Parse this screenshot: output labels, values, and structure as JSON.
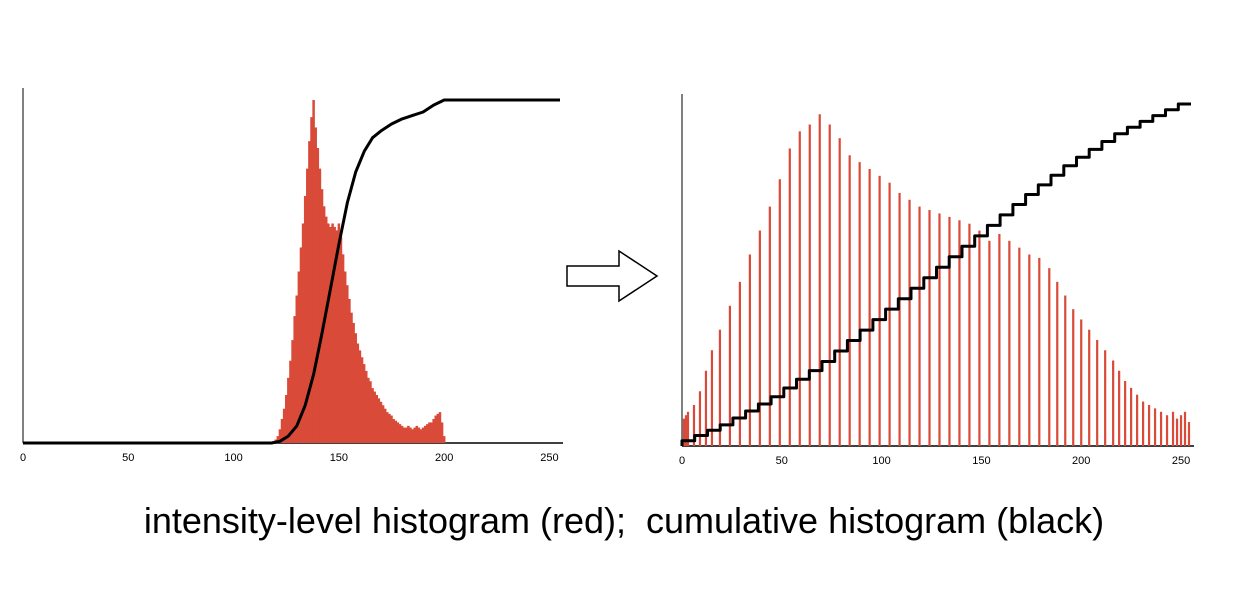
{
  "caption": "intensity-level histogram (red);  cumulative histogram (black)",
  "colors": {
    "histogram": "#d94a38",
    "cumulative": "#000000",
    "axis": "#000000"
  },
  "arrow_icon": "right-arrow-icon",
  "chart_data": [
    {
      "type": "bar",
      "title": "",
      "xlabel": "",
      "ylabel": "",
      "xlim": [
        0,
        255
      ],
      "ylim": [
        0,
        1
      ],
      "xticks": [
        0,
        50,
        100,
        150,
        200,
        250
      ],
      "grid": false,
      "series": [
        {
          "type": "bar",
          "values_sparse": [
            [
              120,
              0.01
            ],
            [
              121,
              0.02
            ],
            [
              122,
              0.04
            ],
            [
              123,
              0.07
            ],
            [
              124,
              0.1
            ],
            [
              125,
              0.14
            ],
            [
              126,
              0.19
            ],
            [
              127,
              0.24
            ],
            [
              128,
              0.3
            ],
            [
              129,
              0.37
            ],
            [
              130,
              0.43
            ],
            [
              131,
              0.5
            ],
            [
              132,
              0.57
            ],
            [
              133,
              0.64
            ],
            [
              134,
              0.72
            ],
            [
              135,
              0.8
            ],
            [
              136,
              0.88
            ],
            [
              137,
              0.95
            ],
            [
              138,
              1.0
            ],
            [
              139,
              0.92
            ],
            [
              140,
              0.86
            ],
            [
              141,
              0.8
            ],
            [
              142,
              0.74
            ],
            [
              143,
              0.69
            ],
            [
              144,
              0.66
            ],
            [
              145,
              0.64
            ],
            [
              146,
              0.63
            ],
            [
              147,
              0.64
            ],
            [
              148,
              0.63
            ],
            [
              149,
              0.62
            ],
            [
              150,
              0.64
            ],
            [
              151,
              0.6
            ],
            [
              152,
              0.55
            ],
            [
              153,
              0.5
            ],
            [
              154,
              0.46
            ],
            [
              155,
              0.42
            ],
            [
              156,
              0.38
            ],
            [
              157,
              0.35
            ],
            [
              158,
              0.32
            ],
            [
              159,
              0.29
            ],
            [
              160,
              0.27
            ],
            [
              161,
              0.25
            ],
            [
              162,
              0.23
            ],
            [
              163,
              0.21
            ],
            [
              164,
              0.19
            ],
            [
              165,
              0.18
            ],
            [
              166,
              0.16
            ],
            [
              167,
              0.15
            ],
            [
              168,
              0.14
            ],
            [
              169,
              0.13
            ],
            [
              170,
              0.12
            ],
            [
              171,
              0.11
            ],
            [
              172,
              0.1
            ],
            [
              173,
              0.09
            ],
            [
              174,
              0.085
            ],
            [
              175,
              0.08
            ],
            [
              176,
              0.07
            ],
            [
              177,
              0.065
            ],
            [
              178,
              0.06
            ],
            [
              179,
              0.055
            ],
            [
              180,
              0.05
            ],
            [
              181,
              0.045
            ],
            [
              182,
              0.045
            ],
            [
              183,
              0.05
            ],
            [
              184,
              0.045
            ],
            [
              185,
              0.04
            ],
            [
              186,
              0.045
            ],
            [
              187,
              0.05
            ],
            [
              188,
              0.045
            ],
            [
              189,
              0.04
            ],
            [
              190,
              0.045
            ],
            [
              191,
              0.05
            ],
            [
              192,
              0.055
            ],
            [
              193,
              0.06
            ],
            [
              194,
              0.06
            ],
            [
              195,
              0.07
            ],
            [
              196,
              0.08
            ],
            [
              197,
              0.085
            ],
            [
              198,
              0.09
            ],
            [
              199,
              0.06
            ],
            [
              200,
              0.02
            ]
          ]
        },
        {
          "type": "line",
          "x": [
            0,
            118,
            122,
            126,
            130,
            134,
            138,
            142,
            146,
            150,
            154,
            158,
            162,
            166,
            170,
            175,
            180,
            185,
            190,
            195,
            200,
            255
          ],
          "values": [
            0,
            0,
            0.005,
            0.02,
            0.05,
            0.11,
            0.2,
            0.32,
            0.45,
            0.58,
            0.7,
            0.79,
            0.85,
            0.89,
            0.91,
            0.93,
            0.945,
            0.955,
            0.965,
            0.985,
            1.0,
            1.0
          ]
        }
      ]
    },
    {
      "type": "bar",
      "title": "",
      "xlabel": "",
      "ylabel": "",
      "xlim": [
        0,
        255
      ],
      "ylim": [
        0,
        1
      ],
      "xticks": [
        0,
        50,
        100,
        150,
        200,
        250
      ],
      "grid": false,
      "series": [
        {
          "type": "bar",
          "values_sparse": [
            [
              1,
              0.08
            ],
            [
              2,
              0.09
            ],
            [
              3,
              0.1
            ],
            [
              6,
              0.12
            ],
            [
              9,
              0.16
            ],
            [
              12,
              0.22
            ],
            [
              15,
              0.28
            ],
            [
              19,
              0.34
            ],
            [
              24,
              0.41
            ],
            [
              29,
              0.48
            ],
            [
              34,
              0.56
            ],
            [
              39,
              0.63
            ],
            [
              44,
              0.7
            ],
            [
              49,
              0.78
            ],
            [
              54,
              0.87
            ],
            [
              59,
              0.92
            ],
            [
              64,
              0.94
            ],
            [
              69,
              0.97
            ],
            [
              74,
              0.94
            ],
            [
              79,
              0.9
            ],
            [
              84,
              0.85
            ],
            [
              89,
              0.83
            ],
            [
              94,
              0.81
            ],
            [
              99,
              0.79
            ],
            [
              104,
              0.77
            ],
            [
              109,
              0.74
            ],
            [
              114,
              0.72
            ],
            [
              119,
              0.7
            ],
            [
              124,
              0.69
            ],
            [
              129,
              0.68
            ],
            [
              134,
              0.67
            ],
            [
              139,
              0.66
            ],
            [
              144,
              0.65
            ],
            [
              149,
              0.63
            ],
            [
              154,
              0.6
            ],
            [
              159,
              0.62
            ],
            [
              164,
              0.6
            ],
            [
              169,
              0.58
            ],
            [
              174,
              0.56
            ],
            [
              179,
              0.55
            ],
            [
              184,
              0.52
            ],
            [
              188,
              0.48
            ],
            [
              192,
              0.44
            ],
            [
              196,
              0.4
            ],
            [
              200,
              0.37
            ],
            [
              204,
              0.34
            ],
            [
              208,
              0.31
            ],
            [
              212,
              0.28
            ],
            [
              216,
              0.25
            ],
            [
              219,
              0.22
            ],
            [
              222,
              0.19
            ],
            [
              225,
              0.17
            ],
            [
              228,
              0.15
            ],
            [
              231,
              0.13
            ],
            [
              234,
              0.12
            ],
            [
              237,
              0.11
            ],
            [
              240,
              0.1
            ],
            [
              243,
              0.09
            ],
            [
              246,
              0.1
            ],
            [
              248,
              0.08
            ],
            [
              250,
              0.09
            ],
            [
              252,
              0.1
            ],
            [
              254,
              0.07
            ]
          ]
        },
        {
          "type": "line",
          "x": [
            0,
            25,
            50,
            75,
            100,
            125,
            150,
            175,
            200,
            225,
            255
          ],
          "values": [
            0,
            0.06,
            0.14,
            0.24,
            0.36,
            0.48,
            0.6,
            0.72,
            0.83,
            0.92,
            1.0
          ]
        }
      ]
    }
  ]
}
